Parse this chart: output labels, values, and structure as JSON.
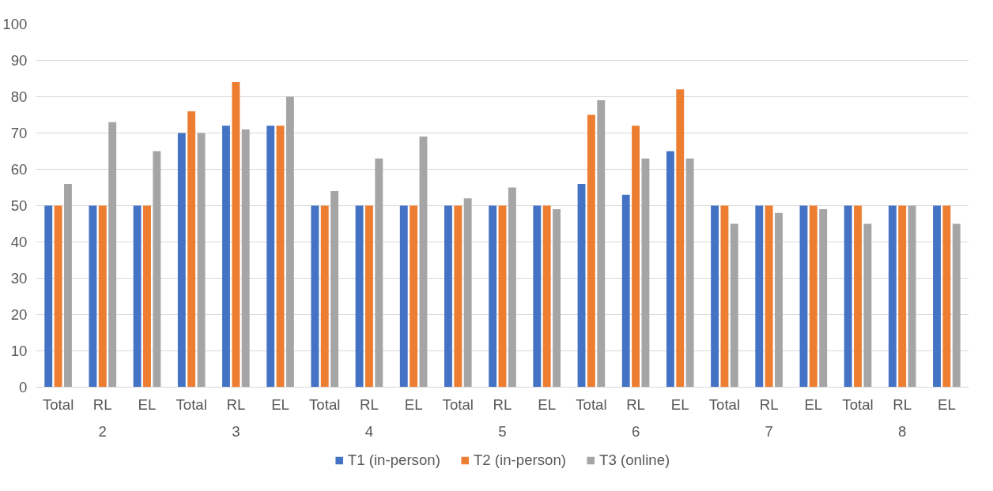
{
  "chart_data": {
    "type": "bar",
    "categories": [
      "Total",
      "RL",
      "EL",
      "Total",
      "RL",
      "EL",
      "Total",
      "RL",
      "EL",
      "Total",
      "RL",
      "EL",
      "Total",
      "RL",
      "EL",
      "Total",
      "RL",
      "EL",
      "Total",
      "RL",
      "EL"
    ],
    "annotations": [
      "2",
      "3",
      "4",
      "5",
      "6",
      "7",
      "8"
    ],
    "series": [
      {
        "name": "T1 (in-person)",
        "color": "#4472c4",
        "values": [
          50,
          50,
          50,
          70,
          72,
          72,
          50,
          50,
          50,
          50,
          50,
          50,
          56,
          53,
          65,
          50,
          50,
          50,
          50,
          50,
          50
        ]
      },
      {
        "name": "T2 (in-person)",
        "color": "#ed7d31",
        "values": [
          50,
          50,
          50,
          76,
          84,
          72,
          50,
          50,
          50,
          50,
          50,
          50,
          75,
          72,
          82,
          50,
          50,
          50,
          50,
          50,
          50
        ]
      },
      {
        "name": "T3 (online)",
        "color": "#a5a5a5",
        "values": [
          56,
          73,
          65,
          70,
          71,
          80,
          54,
          63,
          69,
          52,
          55,
          49,
          79,
          63,
          63,
          45,
          48,
          49,
          45,
          50,
          45
        ]
      }
    ],
    "ylim": [
      0,
      100
    ],
    "yticks": [
      0,
      10,
      20,
      30,
      40,
      50,
      60,
      70,
      80,
      90,
      100
    ],
    "grid": "y",
    "legend": "bottom"
  }
}
